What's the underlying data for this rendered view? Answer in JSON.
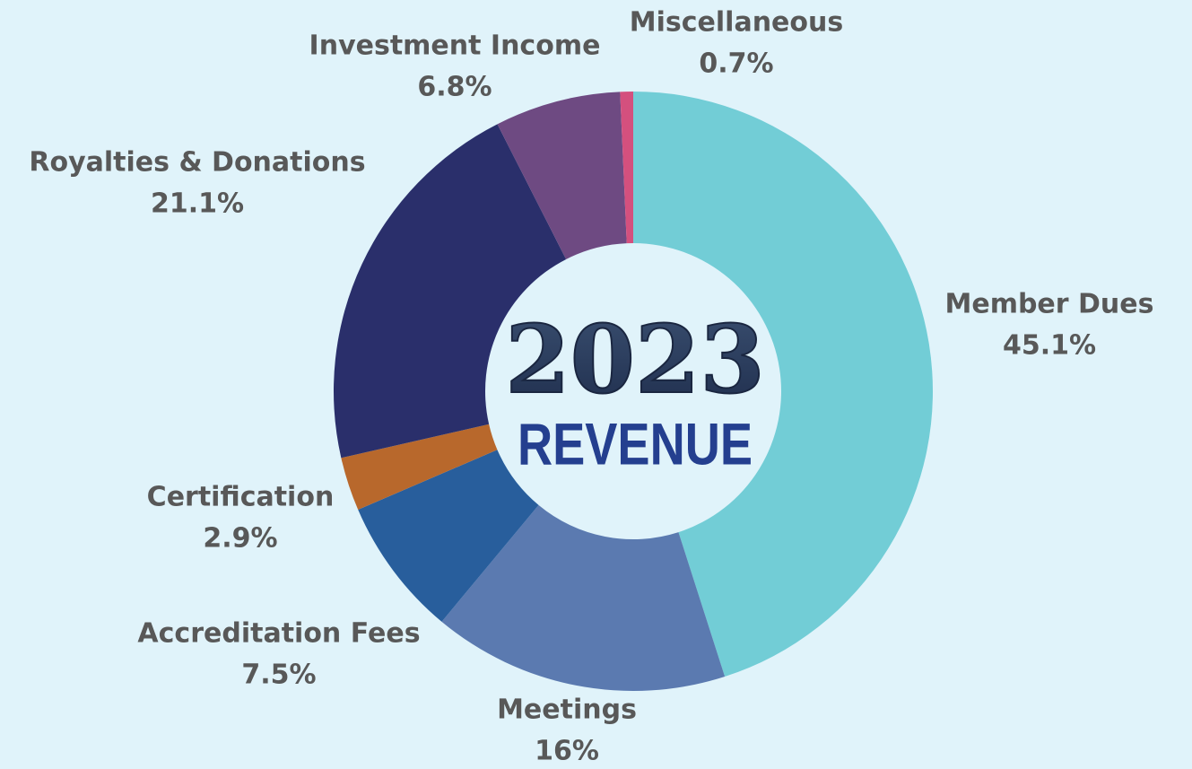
{
  "chart_data": {
    "type": "donut",
    "center_title": "2023",
    "center_subtitle": "REVENUE",
    "categories": [
      "Member Dues",
      "Meetings",
      "Accreditation Fees",
      "Certification",
      "Royalties & Donations",
      "Investment Income",
      "Miscellaneous"
    ],
    "values": [
      45.1,
      16,
      7.5,
      2.9,
      21.1,
      6.8,
      0.7
    ],
    "value_labels": [
      "45.1%",
      "16%",
      "7.5%",
      "2.9%",
      "21.1%",
      "6.8%",
      "0.7%"
    ],
    "colors": [
      "#72cdd6",
      "#5b7ab0",
      "#285e9c",
      "#b8682c",
      "#2a2f6b",
      "#6e4a82",
      "#d4507e"
    ]
  }
}
